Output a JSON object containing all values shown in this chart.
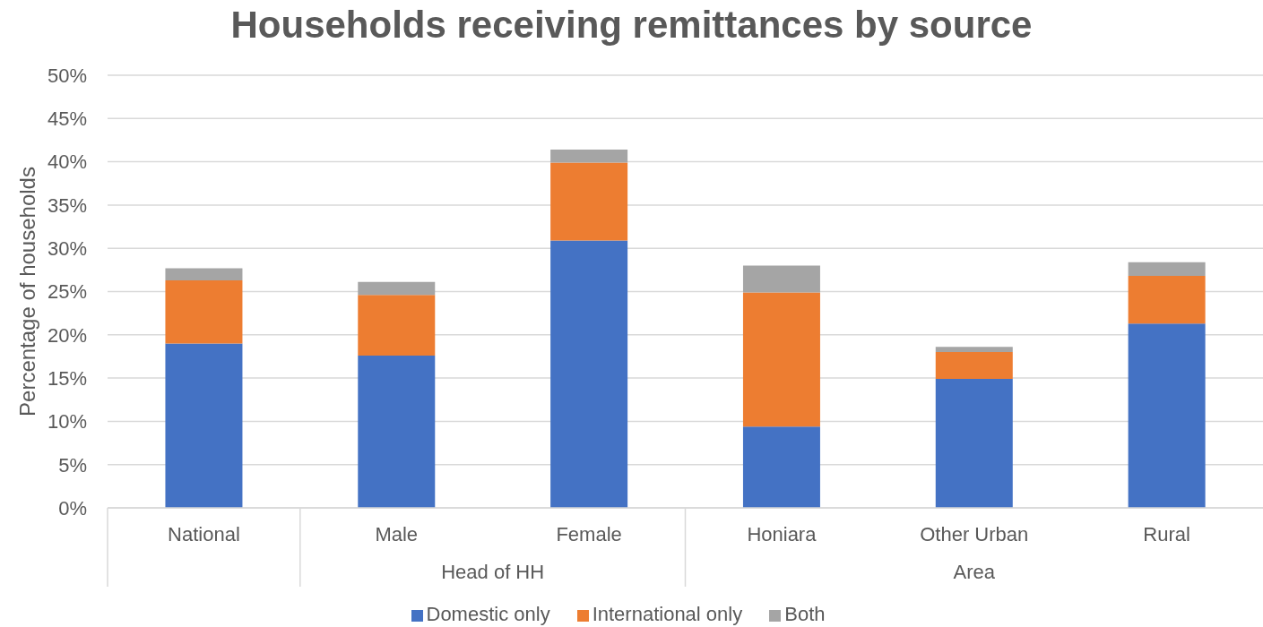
{
  "chart_data": {
    "type": "bar",
    "title": "Households receiving remittances by source",
    "ylabel": "Percentage of households",
    "categories": [
      "National",
      "Male",
      "Female",
      "Honiara",
      "Other Urban",
      "Rural"
    ],
    "annotations": [
      "Head of HH",
      "Area"
    ],
    "stacked": true,
    "series": [
      {
        "name": "Domestic only",
        "color": "#4472c4",
        "values": [
          19.0,
          17.6,
          30.9,
          9.4,
          14.9,
          21.3
        ]
      },
      {
        "name": "International only",
        "color": "#ed7d31",
        "values": [
          7.3,
          7.0,
          9.0,
          15.5,
          3.1,
          5.5
        ]
      },
      {
        "name": "Both",
        "color": "#a5a5a5",
        "values": [
          1.4,
          1.5,
          1.5,
          3.1,
          0.6,
          1.6
        ]
      }
    ],
    "ylim": [
      0,
      50
    ],
    "yticks": [
      {
        "value": 0,
        "label": "0%"
      },
      {
        "value": 5,
        "label": "5%"
      },
      {
        "value": 10,
        "label": "10%"
      },
      {
        "value": 15,
        "label": "15%"
      },
      {
        "value": 20,
        "label": "20%"
      },
      {
        "value": 25,
        "label": "25%"
      },
      {
        "value": 30,
        "label": "30%"
      },
      {
        "value": 35,
        "label": "35%"
      },
      {
        "value": 40,
        "label": "40%"
      },
      {
        "value": 45,
        "label": "45%"
      },
      {
        "value": 50,
        "label": "50%"
      }
    ],
    "grid": "y",
    "legend": "bottom"
  }
}
